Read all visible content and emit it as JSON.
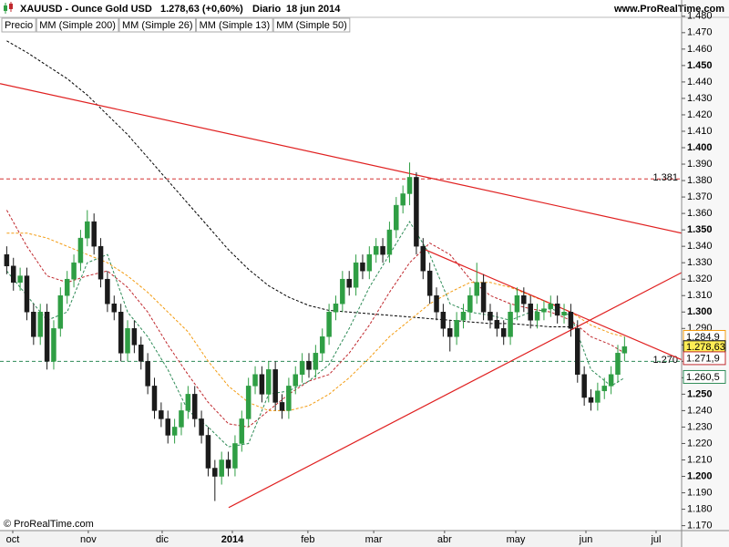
{
  "header": {
    "symbol": "XAUUSD - Ounce Gold USD",
    "quote": "1.278,63 (+0,60%)",
    "period": "Diario",
    "date": "18 jun 2014",
    "site": "www.ProRealTime.com",
    "copyright": "© ProRealTime.com"
  },
  "chart_data": {
    "type": "candlestick",
    "price_name": "Precio",
    "up_color": "#2f9e44",
    "down_color": "#1b1b1b",
    "x": [
      0,
      2,
      4,
      6,
      8,
      10,
      12,
      14,
      16,
      18,
      20,
      22,
      24,
      26,
      28,
      30,
      32,
      34,
      36,
      38,
      40,
      42,
      44,
      46,
      48,
      50,
      52,
      54,
      56,
      58,
      60,
      62,
      64,
      66,
      68,
      70,
      72,
      74,
      76,
      78,
      80,
      82,
      84,
      86,
      88,
      90,
      92,
      94,
      96,
      98,
      100,
      102,
      104,
      106,
      108,
      110,
      112,
      114,
      116,
      118,
      120,
      122,
      124,
      126,
      128,
      130,
      132,
      134,
      136,
      138,
      140,
      142,
      144,
      146,
      148,
      150,
      152,
      154,
      156,
      158,
      160,
      162,
      164,
      166,
      168,
      170,
      172,
      174,
      176,
      178,
      180,
      182,
      184
    ],
    "open": [
      1.335,
      1.328,
      1.318,
      1.322,
      1.3,
      1.285,
      1.3,
      1.27,
      1.29,
      1.31,
      1.32,
      1.33,
      1.345,
      1.355,
      1.34,
      1.32,
      1.305,
      1.3,
      1.275,
      1.29,
      1.28,
      1.27,
      1.255,
      1.24,
      1.235,
      1.225,
      1.23,
      1.24,
      1.25,
      1.235,
      1.225,
      1.205,
      1.2,
      1.21,
      1.205,
      1.22,
      1.235,
      1.255,
      1.262,
      1.25,
      1.265,
      1.245,
      1.24,
      1.255,
      1.262,
      1.27,
      1.265,
      1.275,
      1.285,
      1.3,
      1.305,
      1.32,
      1.315,
      1.33,
      1.325,
      1.335,
      1.34,
      1.335,
      1.35,
      1.365,
      1.372,
      1.382,
      1.34,
      1.325,
      1.31,
      1.3,
      1.29,
      1.285,
      1.295,
      1.3,
      1.31,
      1.318,
      1.3,
      1.295,
      1.29,
      1.285,
      1.3,
      1.31,
      1.305,
      1.295,
      1.3,
      1.302,
      1.305,
      1.298,
      1.3,
      1.29,
      1.262,
      1.248,
      1.245,
      1.252,
      1.255,
      1.262,
      1.275
    ],
    "high": [
      1.34,
      1.333,
      1.327,
      1.327,
      1.305,
      1.305,
      1.305,
      1.295,
      1.315,
      1.325,
      1.335,
      1.35,
      1.362,
      1.36,
      1.345,
      1.325,
      1.31,
      1.305,
      1.295,
      1.295,
      1.285,
      1.275,
      1.26,
      1.245,
      1.24,
      1.235,
      1.245,
      1.255,
      1.255,
      1.24,
      1.23,
      1.21,
      1.215,
      1.215,
      1.225,
      1.24,
      1.26,
      1.267,
      1.267,
      1.27,
      1.27,
      1.25,
      1.26,
      1.267,
      1.275,
      1.275,
      1.28,
      1.29,
      1.305,
      1.31,
      1.325,
      1.325,
      1.335,
      1.335,
      1.34,
      1.345,
      1.345,
      1.355,
      1.37,
      1.377,
      1.391,
      1.385,
      1.345,
      1.33,
      1.315,
      1.305,
      1.295,
      1.3,
      1.305,
      1.315,
      1.33,
      1.323,
      1.305,
      1.3,
      1.295,
      1.305,
      1.315,
      1.315,
      1.31,
      1.305,
      1.307,
      1.31,
      1.31,
      1.305,
      1.305,
      1.295,
      1.267,
      1.253,
      1.257,
      1.26,
      1.267,
      1.28,
      1.285
    ],
    "low": [
      1.323,
      1.313,
      1.313,
      1.295,
      1.28,
      1.28,
      1.265,
      1.265,
      1.285,
      1.305,
      1.315,
      1.325,
      1.34,
      1.335,
      1.315,
      1.3,
      1.295,
      1.27,
      1.27,
      1.275,
      1.265,
      1.25,
      1.235,
      1.23,
      1.22,
      1.22,
      1.225,
      1.235,
      1.23,
      1.22,
      1.2,
      1.185,
      1.195,
      1.2,
      1.2,
      1.215,
      1.23,
      1.25,
      1.245,
      1.245,
      1.24,
      1.235,
      1.235,
      1.25,
      1.257,
      1.26,
      1.26,
      1.27,
      1.28,
      1.295,
      1.3,
      1.31,
      1.31,
      1.32,
      1.32,
      1.33,
      1.33,
      1.33,
      1.345,
      1.36,
      1.365,
      1.335,
      1.32,
      1.305,
      1.295,
      1.285,
      1.276,
      1.28,
      1.29,
      1.295,
      1.305,
      1.295,
      1.29,
      1.285,
      1.28,
      1.28,
      1.295,
      1.3,
      1.29,
      1.29,
      1.295,
      1.297,
      1.293,
      1.293,
      1.285,
      1.257,
      1.243,
      1.24,
      1.24,
      1.247,
      1.25,
      1.257,
      1.27
    ],
    "close": [
      1.328,
      1.318,
      1.322,
      1.3,
      1.285,
      1.3,
      1.27,
      1.29,
      1.31,
      1.32,
      1.33,
      1.345,
      1.355,
      1.34,
      1.32,
      1.305,
      1.3,
      1.275,
      1.29,
      1.28,
      1.27,
      1.255,
      1.24,
      1.235,
      1.225,
      1.23,
      1.24,
      1.25,
      1.235,
      1.225,
      1.205,
      1.2,
      1.21,
      1.205,
      1.22,
      1.235,
      1.255,
      1.262,
      1.25,
      1.265,
      1.245,
      1.24,
      1.255,
      1.262,
      1.27,
      1.265,
      1.275,
      1.285,
      1.3,
      1.305,
      1.32,
      1.315,
      1.33,
      1.325,
      1.335,
      1.34,
      1.335,
      1.35,
      1.365,
      1.372,
      1.382,
      1.34,
      1.325,
      1.31,
      1.3,
      1.29,
      1.285,
      1.295,
      1.3,
      1.31,
      1.318,
      1.3,
      1.295,
      1.29,
      1.285,
      1.3,
      1.31,
      1.305,
      1.295,
      1.3,
      1.302,
      1.305,
      1.298,
      1.3,
      1.29,
      1.262,
      1.248,
      1.245,
      1.252,
      1.255,
      1.262,
      1.275,
      1.279
    ],
    "averages": {
      "x": [
        0,
        6,
        12,
        18,
        24,
        30,
        36,
        42,
        48,
        54,
        60,
        66,
        72,
        78,
        84,
        90,
        96,
        102,
        108,
        114,
        120,
        126,
        132,
        138,
        144,
        150,
        156,
        162,
        168,
        174,
        180,
        184
      ],
      "series": [
        {
          "name": "MM (Simple 200)",
          "color": "#000000",
          "values": [
            1.465,
            1.458,
            1.45,
            1.442,
            1.432,
            1.42,
            1.408,
            1.394,
            1.38,
            1.366,
            1.352,
            1.338,
            1.326,
            1.316,
            1.309,
            1.304,
            1.301,
            1.3,
            1.299,
            1.298,
            1.297,
            1.296,
            1.295,
            1.294,
            1.293,
            1.293,
            1.292,
            1.291,
            1.291,
            null,
            null,
            null
          ]
        },
        {
          "name": "MM (Simple 26)",
          "color": "#c0282d",
          "values": [
            1.362,
            1.34,
            1.322,
            1.318,
            1.322,
            1.325,
            1.315,
            1.3,
            1.28,
            1.262,
            1.245,
            1.232,
            1.23,
            1.24,
            1.25,
            1.258,
            1.262,
            1.275,
            1.292,
            1.312,
            1.33,
            1.342,
            1.335,
            1.32,
            1.31,
            1.305,
            1.302,
            1.3,
            1.295,
            1.285,
            1.28,
            1.275
          ]
        },
        {
          "name": "MM (Simple 13)",
          "color": "#2e8b57",
          "values": [
            1.325,
            1.31,
            1.295,
            1.3,
            1.33,
            1.335,
            1.3,
            1.285,
            1.265,
            1.24,
            1.23,
            1.218,
            1.22,
            1.25,
            1.252,
            1.258,
            1.268,
            1.29,
            1.315,
            1.335,
            1.355,
            1.335,
            1.305,
            1.3,
            1.298,
            1.295,
            1.3,
            1.302,
            1.298,
            1.265,
            1.255,
            1.26
          ]
        },
        {
          "name": "MM (Simple 50)",
          "color": "#f39c12",
          "values": [
            1.348,
            1.348,
            1.345,
            1.34,
            1.335,
            1.33,
            1.322,
            1.312,
            1.3,
            1.288,
            1.27,
            1.255,
            1.245,
            1.24,
            1.24,
            1.243,
            1.25,
            1.26,
            1.272,
            1.285,
            1.295,
            1.305,
            1.312,
            1.318,
            1.318,
            1.315,
            1.31,
            1.305,
            1.3,
            1.292,
            1.287,
            1.285
          ]
        }
      ]
    },
    "trend_color": "#e02020",
    "trendlines": [
      {
        "x": [
          -2,
          201
        ],
        "y": [
          1.439,
          1.348
        ]
      },
      {
        "x": [
          123.4,
          201
        ],
        "y": [
          1.339,
          1.271
        ]
      },
      {
        "x": [
          66.1,
          201
        ],
        "y": [
          1.181,
          1.324
        ]
      }
    ],
    "levels": [
      {
        "value": 1.381,
        "label": "1.381",
        "color": "#d33030"
      },
      {
        "value": 1.27,
        "label": "1.270",
        "color": "#2e8b57"
      }
    ],
    "price_tags": [
      {
        "value": 1.2849,
        "label": "1.284,9",
        "color": "#f39c12",
        "fill": "#ffffff"
      },
      {
        "value": 1.27863,
        "label": "1.278,63",
        "color": "#000000",
        "fill": "#ffee55"
      },
      {
        "value": 1.2719,
        "label": "1.271,9",
        "color": "#c0282d",
        "fill": "#ffffff"
      },
      {
        "value": 1.2605,
        "label": "1.260,5",
        "color": "#2e8b57",
        "fill": "#ffffff"
      }
    ],
    "xlim": [
      -2,
      201
    ],
    "xticks": [
      {
        "value": 1.8,
        "label": "oct"
      },
      {
        "value": 24.3,
        "label": "nov"
      },
      {
        "value": 46.3,
        "label": "dic"
      },
      {
        "value": 67.2,
        "label": "2014"
      },
      {
        "value": 89.7,
        "label": "feb"
      },
      {
        "value": 109.3,
        "label": "mar"
      },
      {
        "value": 130.4,
        "label": "abr"
      },
      {
        "value": 151.6,
        "label": "may"
      },
      {
        "value": 172.5,
        "label": "jun"
      },
      {
        "value": 193.4,
        "label": "jul"
      }
    ],
    "ylim": [
      1.167,
      1.481
    ],
    "yticks": [
      {
        "value": 1.17,
        "label": "1.170"
      },
      {
        "value": 1.18,
        "label": "1.180"
      },
      {
        "value": 1.19,
        "label": "1.190"
      },
      {
        "value": 1.2,
        "label": "1.200"
      },
      {
        "value": 1.21,
        "label": "1.210"
      },
      {
        "value": 1.22,
        "label": "1.220"
      },
      {
        "value": 1.23,
        "label": "1.230"
      },
      {
        "value": 1.24,
        "label": "1.240"
      },
      {
        "value": 1.25,
        "label": "1.250"
      },
      {
        "value": 1.26,
        "label": "1.260"
      },
      {
        "value": 1.27,
        "label": "1.270"
      },
      {
        "value": 1.28,
        "label": "1.280"
      },
      {
        "value": 1.29,
        "label": "1.290"
      },
      {
        "value": 1.3,
        "label": "1.300"
      },
      {
        "value": 1.31,
        "label": "1.310"
      },
      {
        "value": 1.32,
        "label": "1.320"
      },
      {
        "value": 1.33,
        "label": "1.330"
      },
      {
        "value": 1.34,
        "label": "1.340"
      },
      {
        "value": 1.35,
        "label": "1.350"
      },
      {
        "value": 1.36,
        "label": "1.360"
      },
      {
        "value": 1.37,
        "label": "1.370"
      },
      {
        "value": 1.38,
        "label": "1.380"
      },
      {
        "value": 1.39,
        "label": "1.390"
      },
      {
        "value": 1.4,
        "label": "1.400"
      },
      {
        "value": 1.41,
        "label": "1.410"
      },
      {
        "value": 1.42,
        "label": "1.420"
      },
      {
        "value": 1.43,
        "label": "1.430"
      },
      {
        "value": 1.44,
        "label": "1.440"
      },
      {
        "value": 1.45,
        "label": "1.450"
      },
      {
        "value": 1.46,
        "label": "1.460"
      },
      {
        "value": 1.47,
        "label": "1.470"
      },
      {
        "value": 1.48,
        "label": "1.480"
      }
    ]
  }
}
